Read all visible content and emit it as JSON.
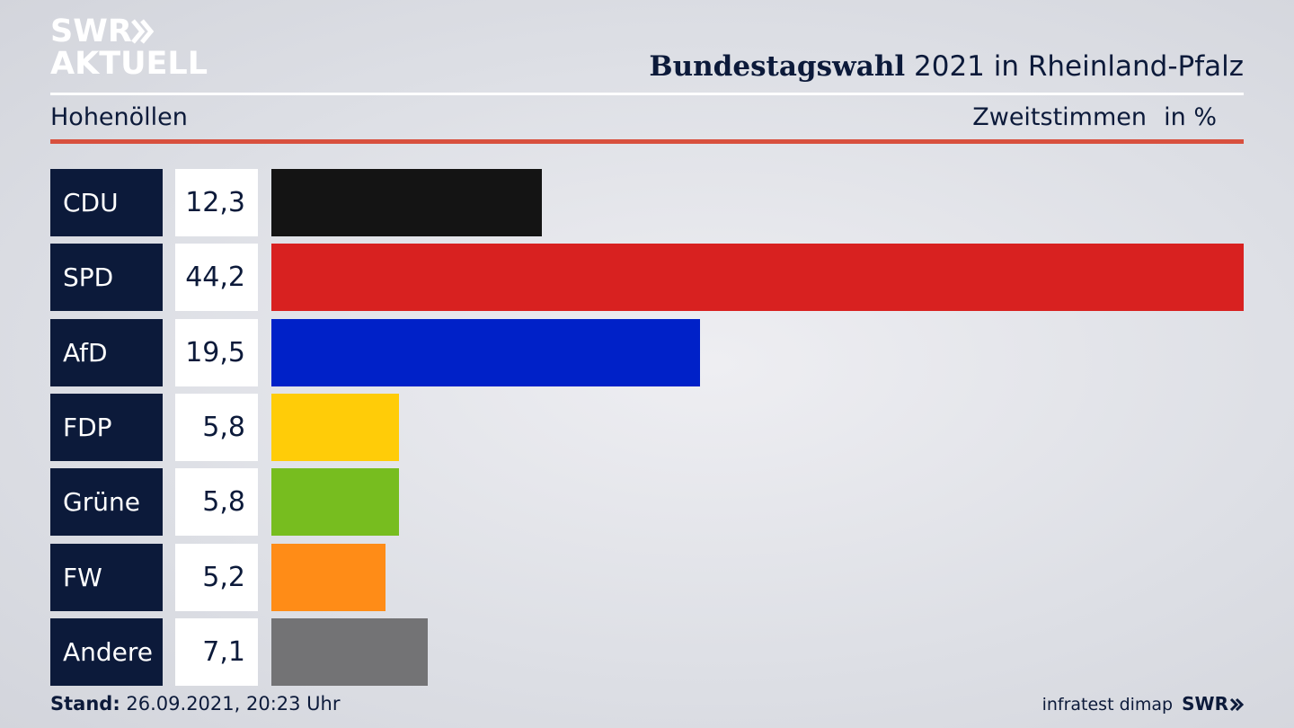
{
  "logo": {
    "line1": "SWR",
    "line2": "AKTUELL"
  },
  "header": {
    "title_bold": "Bundestagswahl",
    "title_rest": " 2021 in Rheinland-Pfalz",
    "region": "Hohenöllen",
    "measure": "Zweitstimmen",
    "unit": "in %"
  },
  "chart_data": {
    "type": "bar",
    "orientation": "horizontal",
    "categories": [
      "CDU",
      "SPD",
      "AfD",
      "FDP",
      "Grüne",
      "FW",
      "Andere"
    ],
    "values": [
      12.3,
      44.2,
      19.5,
      5.8,
      5.8,
      5.2,
      7.1
    ],
    "value_labels": [
      "12,3",
      "44,2",
      "19,5",
      "5,8",
      "5,8",
      "5,2",
      "7,1"
    ],
    "colors": [
      "#141414",
      "#d82120",
      "#0021c8",
      "#ffcc08",
      "#77bd1f",
      "#ff8c17",
      "#737375"
    ],
    "xlim": [
      0,
      44.2
    ],
    "grid": false,
    "legend": "none"
  },
  "footer": {
    "stand_label": "Stand:",
    "stand_value": " 26.09.2021, 20:23 Uhr",
    "source": "infratest dimap",
    "brand": "SWR"
  }
}
